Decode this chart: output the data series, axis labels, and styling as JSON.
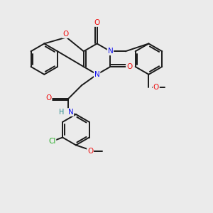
{
  "background_color": "#ebebeb",
  "bond_color": "#1a1a1a",
  "atom_colors": {
    "O": "#ee1111",
    "N": "#1111ee",
    "H": "#228888",
    "Cl": "#22aa22",
    "C": "#1a1a1a"
  },
  "figsize": [
    3.0,
    3.0
  ],
  "dpi": 100
}
